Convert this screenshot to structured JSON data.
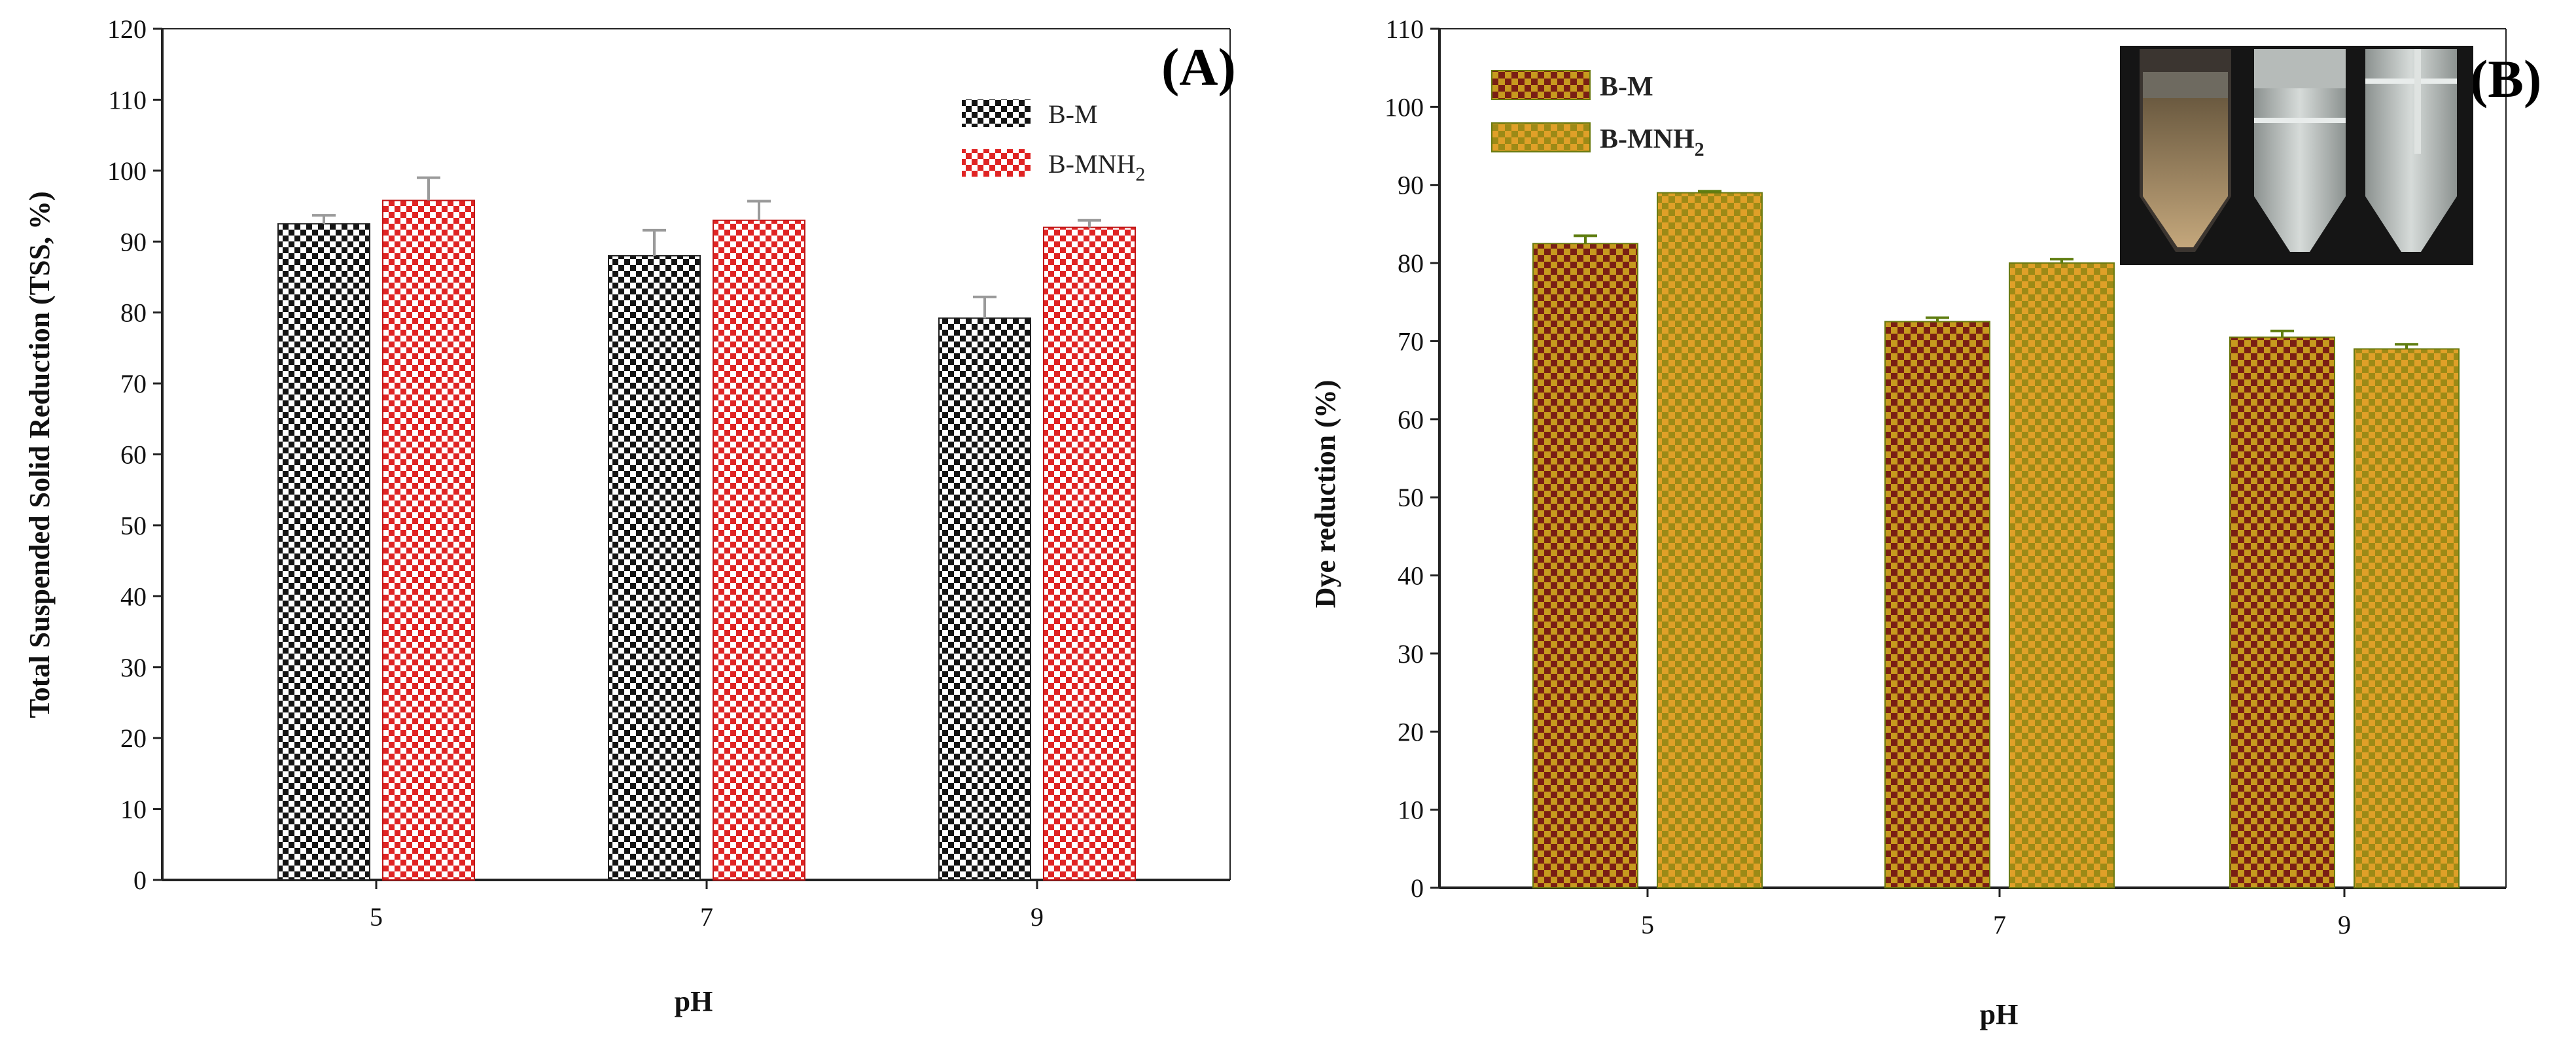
{
  "chart_data": [
    {
      "type": "bar",
      "panel_label": "(A)",
      "categories": [
        "5",
        "7",
        "9"
      ],
      "series": [
        {
          "name": "B-M",
          "values": [
            92.5,
            88.0,
            79.2
          ],
          "errors": [
            1.2,
            3.6,
            3.0
          ],
          "pattern_color": "#141414",
          "pattern_bg": "#ffffff"
        },
        {
          "name": "B-MNH2",
          "values": [
            95.8,
            93.0,
            92.0
          ],
          "errors": [
            3.2,
            2.7,
            1.0
          ],
          "pattern_color": "#e02424",
          "pattern_bg": "#ffffff"
        }
      ],
      "xlabel": "pH",
      "ylabel": "Total Suspended Solid Reduction (TSS, %)",
      "ylim": [
        0,
        120
      ],
      "yticks": [
        "0",
        "10",
        "20",
        "30",
        "40",
        "50",
        "60",
        "70",
        "80",
        "90",
        "100",
        "110",
        "120"
      ],
      "legend_position": "top-right",
      "grid": false
    },
    {
      "type": "bar",
      "panel_label": "(B)",
      "categories": [
        "5",
        "7",
        "9"
      ],
      "series": [
        {
          "name": "B-M",
          "values": [
            82.5,
            72.5,
            70.5
          ],
          "errors": [
            1.0,
            0.5,
            0.8
          ],
          "pattern_color": "#7a1f14",
          "pattern_bg": "#c79a1e"
        },
        {
          "name": "B-MNH2",
          "values": [
            89.0,
            80.0,
            69.0
          ],
          "errors": [
            0.2,
            0.5,
            0.6
          ],
          "pattern_color": "#d1911a",
          "pattern_bg": "#9c8a16"
        }
      ],
      "xlabel": "pH",
      "ylabel": "Dye reduction (%)",
      "ylim": [
        0,
        110
      ],
      "yticks": [
        "0",
        "10",
        "20",
        "30",
        "40",
        "50",
        "60",
        "70",
        "80",
        "90",
        "100",
        "110"
      ],
      "legend_position": "top-left",
      "grid": false,
      "inset_photo": "three centrifuge tubes of treated dye samples"
    }
  ],
  "colors": {
    "axis": "#222222",
    "error_bar_a": "#9a9a9a",
    "error_bar_b": "#5f7d10"
  }
}
